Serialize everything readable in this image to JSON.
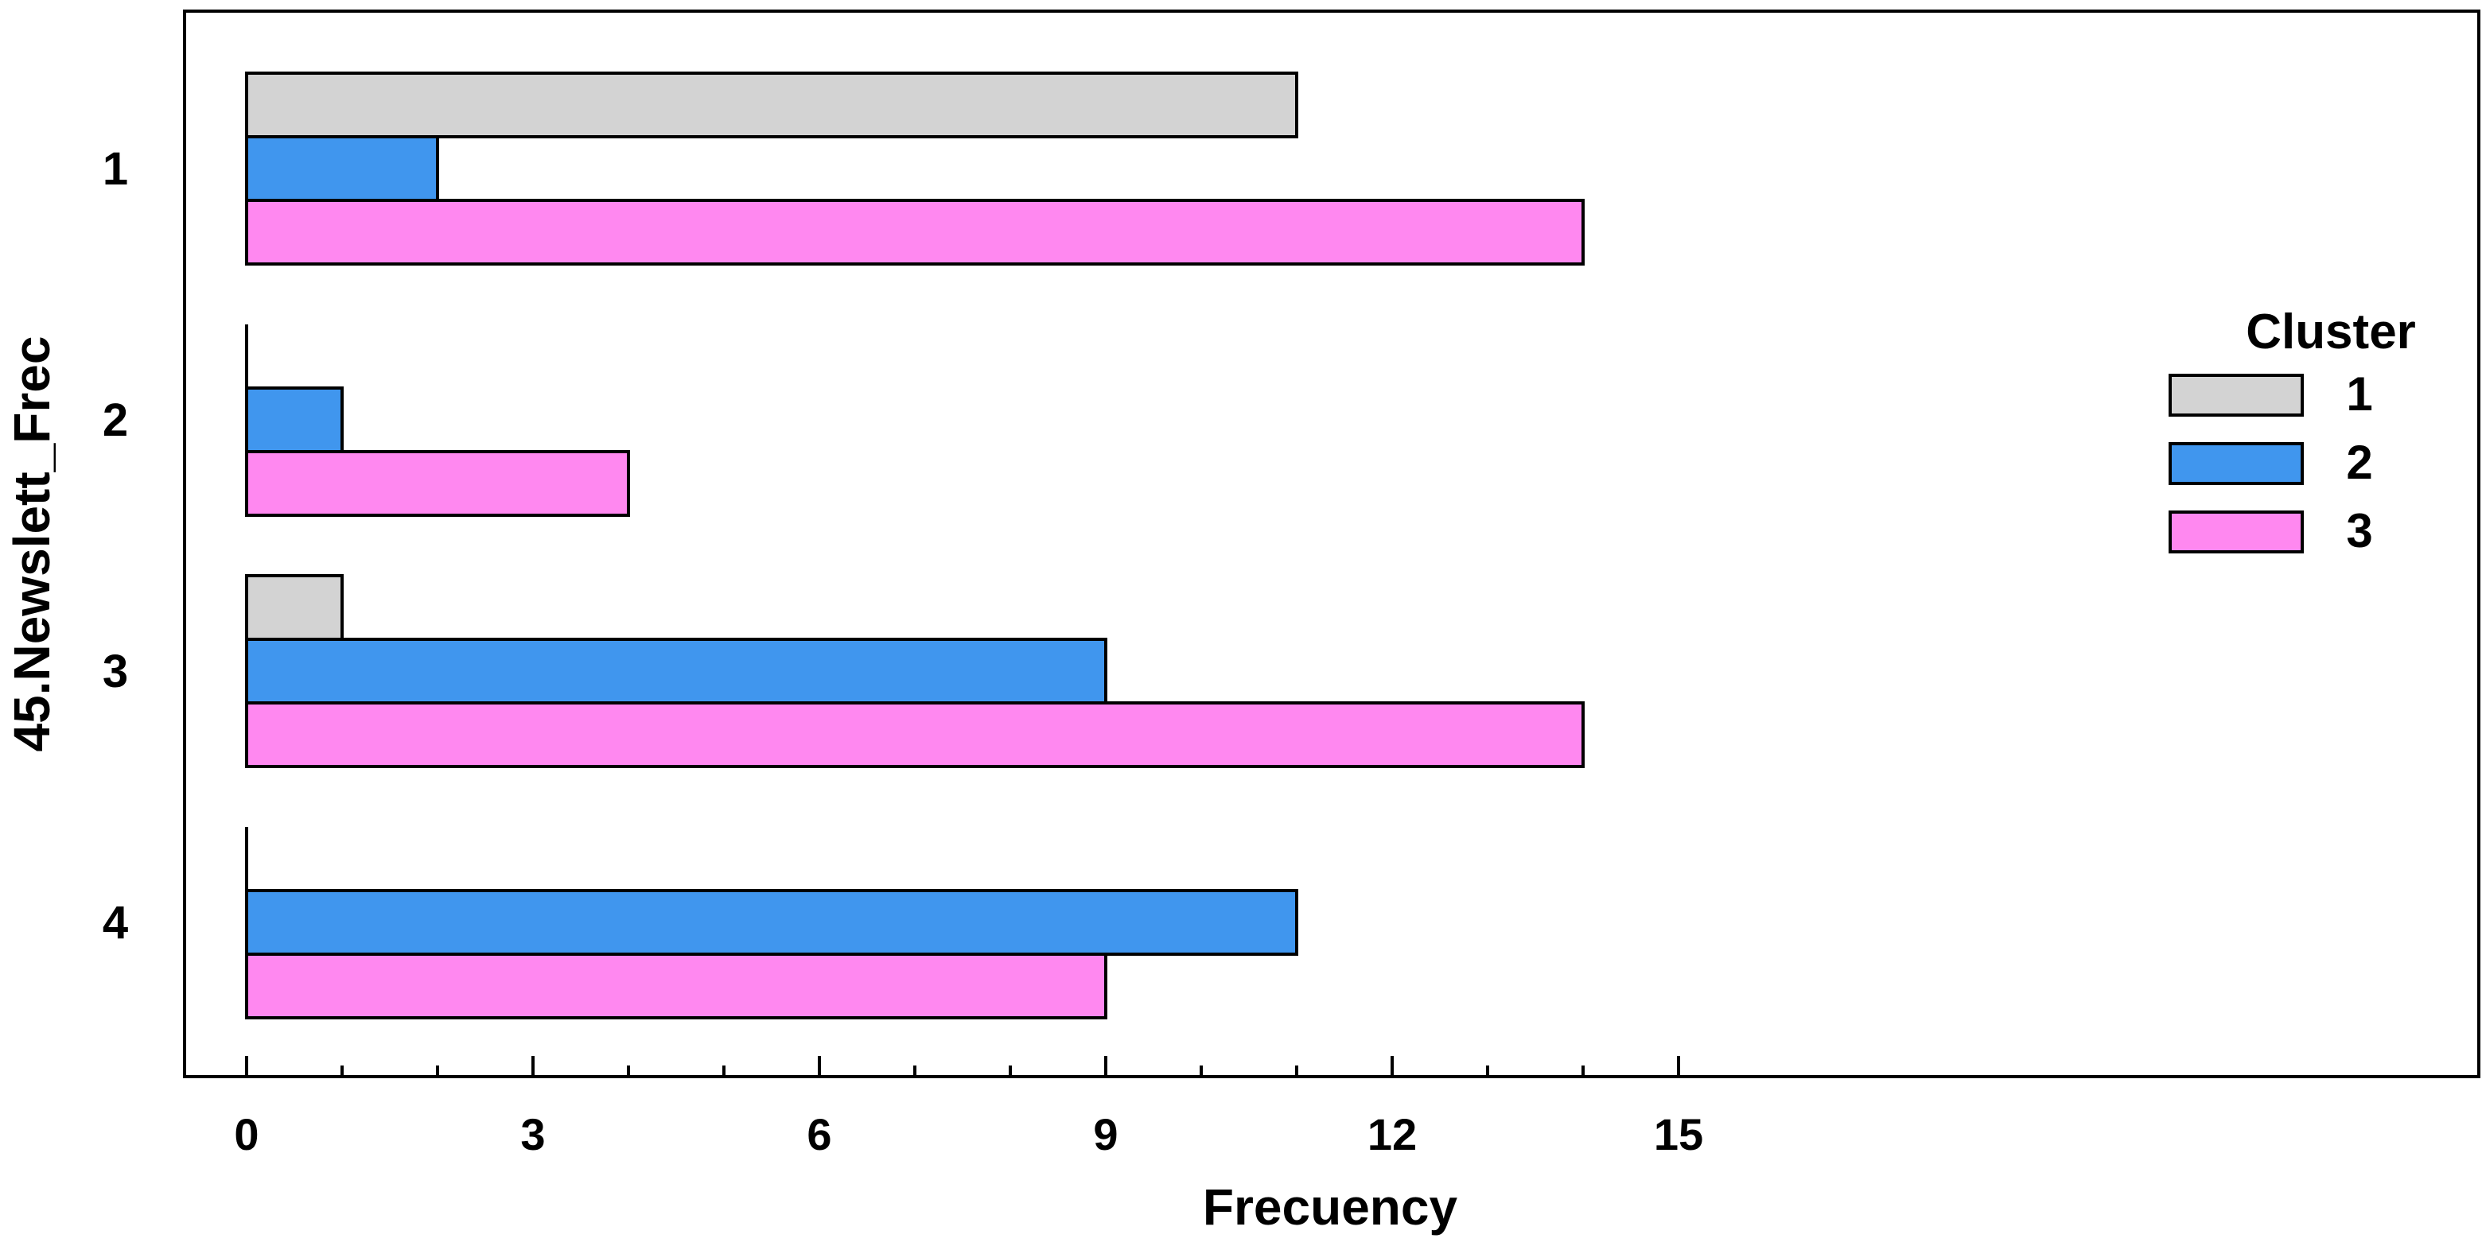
{
  "chart_data": {
    "type": "bar",
    "orientation": "horizontal",
    "categories": [
      "1",
      "2",
      "3",
      "4"
    ],
    "series": [
      {
        "name": "1",
        "values": [
          11,
          0,
          1,
          0
        ],
        "color": "#d3d3d3"
      },
      {
        "name": "2",
        "values": [
          2,
          1,
          9,
          11
        ],
        "color": "#4096ee"
      },
      {
        "name": "3",
        "values": [
          14,
          4,
          14,
          9
        ],
        "color": "#ff88f0"
      }
    ],
    "xlabel": "Frecuency",
    "ylabel": "45.Newslett_Frec",
    "xlim": [
      0,
      15
    ],
    "xticks": [
      0,
      3,
      6,
      9,
      12,
      15
    ],
    "xtick_labels": [
      "0",
      "3",
      "6",
      "9",
      "12",
      "15"
    ],
    "grid": false,
    "legend": {
      "title": "Cluster",
      "placement": "right"
    }
  }
}
